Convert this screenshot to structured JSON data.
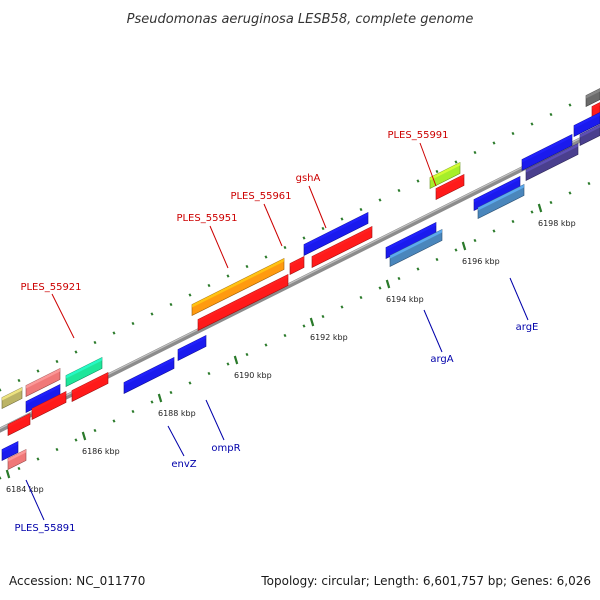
{
  "title": "Pseudomonas aeruginosa LESB58, complete genome",
  "footer": {
    "accession": "Accession: NC_011770",
    "summary": "Topology: circular; Length: 6,601,757 bp; Genes: 6,026"
  },
  "scale_labels": [
    "6184 kbp",
    "6186 kbp",
    "6188 kbp",
    "6190 kbp",
    "6192 kbp",
    "6194 kbp",
    "6196 kbp",
    "6198 kbp"
  ],
  "gene_labels": {
    "top": [
      "PLES_55921",
      "PLES_55951",
      "PLES_55961",
      "gshA",
      "PLES_55991"
    ],
    "bottom": [
      "PLES_55891",
      "envZ",
      "ompR",
      "argA",
      "argE"
    ]
  },
  "colors": {
    "red": "#ff1a1a",
    "blue": "#1a1aee",
    "orange": "#ff9a10",
    "green": "#1ee69a",
    "lime": "#a6ee2a",
    "pink": "#f07878",
    "steel": "#4a86bc",
    "purple": "#4a3f8e",
    "olive": "#bcb466",
    "gray": "#6a6a6a",
    "backbone": "#8c8c8c",
    "tick": "#2a7a2a",
    "label_red": "#cc0000",
    "label_blue": "#0000aa"
  }
}
